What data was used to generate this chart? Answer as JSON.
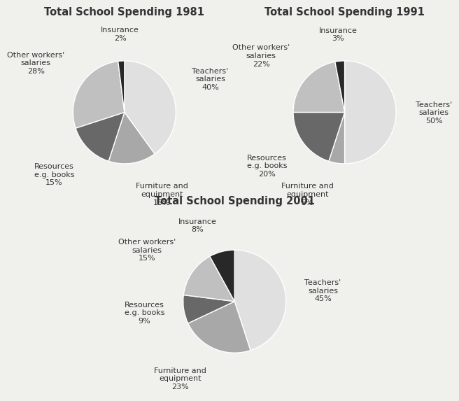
{
  "charts": [
    {
      "title": "Total School Spending 1981",
      "slices": [
        {
          "label": "Teachers'\nsalaries\n40%",
          "value": 40,
          "color": "#e0e0e0"
        },
        {
          "label": "Furniture and\nequipment\n15%",
          "value": 15,
          "color": "#a8a8a8"
        },
        {
          "label": "Resources\ne.g. books\n15%",
          "value": 15,
          "color": "#686868"
        },
        {
          "label": "Other workers'\nsalaries\n28%",
          "value": 28,
          "color": "#c0c0c0"
        },
        {
          "label": "Insurance\n2%",
          "value": 2,
          "color": "#282828"
        }
      ]
    },
    {
      "title": "Total School Spending 1991",
      "slices": [
        {
          "label": "Teachers'\nsalaries\n50%",
          "value": 50,
          "color": "#e0e0e0"
        },
        {
          "label": "Furniture and\nequipment\n5%",
          "value": 5,
          "color": "#a8a8a8"
        },
        {
          "label": "Resources\ne.g. books\n20%",
          "value": 20,
          "color": "#686868"
        },
        {
          "label": "Other workers'\nsalaries\n22%",
          "value": 22,
          "color": "#c0c0c0"
        },
        {
          "label": "Insurance\n3%",
          "value": 3,
          "color": "#282828"
        }
      ]
    },
    {
      "title": "Total School Spending 2001",
      "slices": [
        {
          "label": "Teachers'\nsalaries\n45%",
          "value": 45,
          "color": "#e0e0e0"
        },
        {
          "label": "Furniture and\nequipment\n23%",
          "value": 23,
          "color": "#a8a8a8"
        },
        {
          "label": "Resources\ne.g. books\n9%",
          "value": 9,
          "color": "#686868"
        },
        {
          "label": "Other workers'\nsalaries\n15%",
          "value": 15,
          "color": "#c0c0c0"
        },
        {
          "label": "Insurance\n8%",
          "value": 8,
          "color": "#282828"
        }
      ]
    }
  ],
  "background_color": "#f0f0ec",
  "title_fontsize": 10.5,
  "label_fontsize": 8.0
}
